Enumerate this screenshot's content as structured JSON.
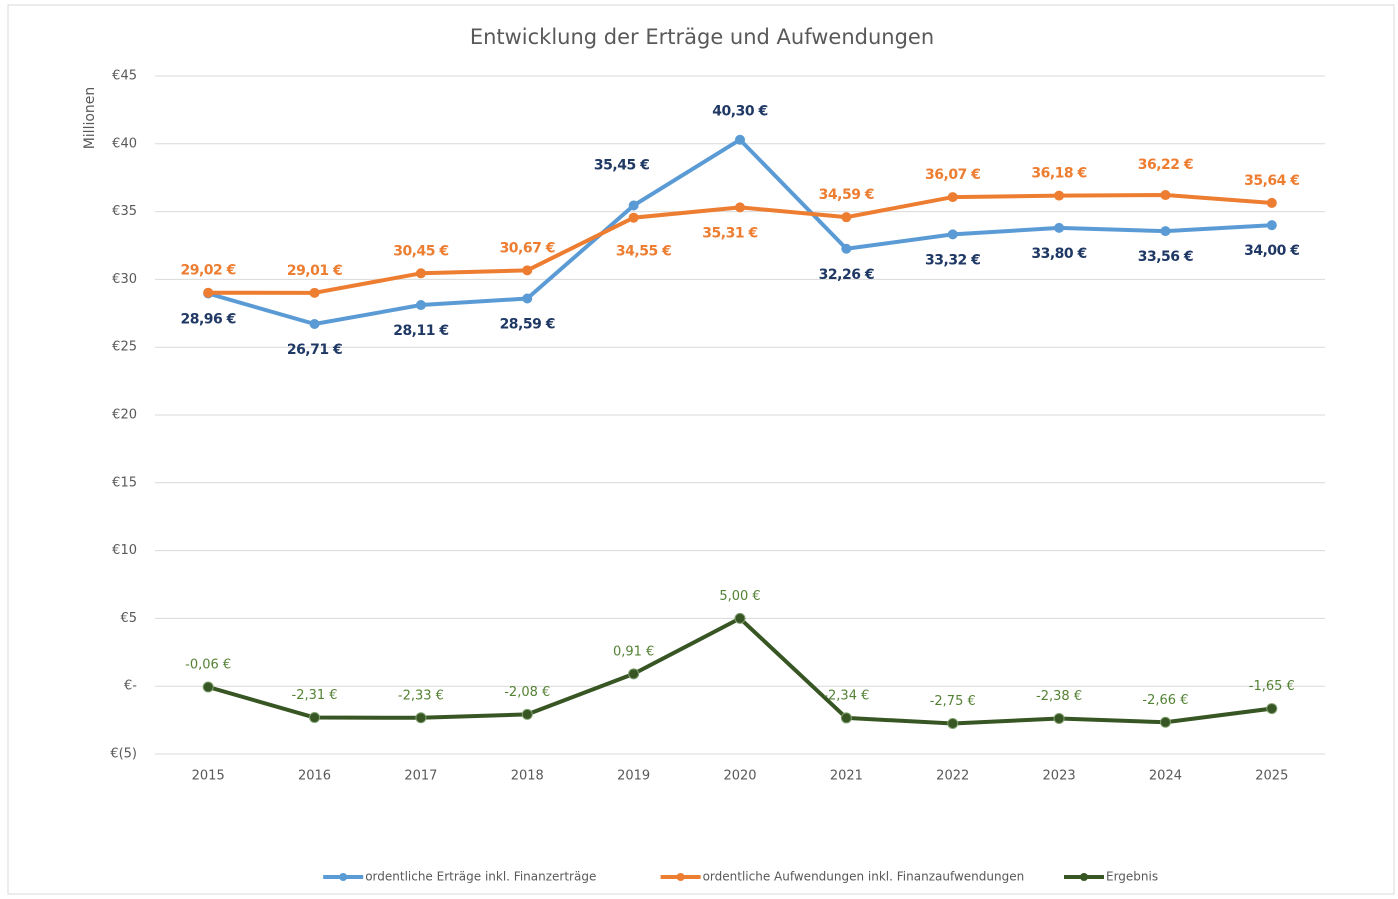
{
  "chart_data": {
    "type": "line",
    "title": "Entwicklung der Erträge und Aufwendungen",
    "y_axis_label": "Millionen",
    "categories": [
      "2015",
      "2016",
      "2017",
      "2018",
      "2019",
      "2020",
      "2021",
      "2022",
      "2023",
      "2024",
      "2025"
    ],
    "series": [
      {
        "name": "ordentliche Erträge inkl. Finanzerträge",
        "color": "#5b9bd5",
        "label_color": "#1f3864",
        "values": [
          28.96,
          26.71,
          28.11,
          28.59,
          35.45,
          40.3,
          32.26,
          33.32,
          33.8,
          33.56,
          34.0
        ],
        "value_labels": [
          "28,96 €",
          "26,71 €",
          "28,11 €",
          "28,59 €",
          "35,45 €",
          "40,30 €",
          "32,26 €",
          "33,32 €",
          "33,80 €",
          "33,56 €",
          "34,00 €"
        ]
      },
      {
        "name": "ordentliche Aufwendungen inkl. Finanzaufwendungen",
        "color": "#ed7d31",
        "label_color": "#ed7d31",
        "values": [
          29.02,
          29.01,
          30.45,
          30.67,
          34.55,
          35.31,
          34.59,
          36.07,
          36.18,
          36.22,
          35.64
        ],
        "value_labels": [
          "29,02 €",
          "29,01 €",
          "30,45 €",
          "30,67 €",
          "34,55 €",
          "35,31 €",
          "34,59 €",
          "36,07 €",
          "36,18 €",
          "36,22 €",
          "35,64 €"
        ]
      },
      {
        "name": "Ergebnis",
        "color": "#375623",
        "label_color": "#548235",
        "values": [
          -0.06,
          -2.31,
          -2.33,
          -2.08,
          0.91,
          5.0,
          -2.34,
          -2.75,
          -2.38,
          -2.66,
          -1.65
        ],
        "value_labels": [
          "-0,06 €",
          "-2,31 €",
          "-2,33 €",
          "-2,08 €",
          "0,91 €",
          "5,00 €",
          "-2,34 €",
          "-2,75 €",
          "-2,38 €",
          "-2,66 €",
          "-1,65 €"
        ]
      }
    ],
    "ylim": [
      -5,
      45
    ],
    "yticks": [
      {
        "value": -5,
        "label": "€(5)"
      },
      {
        "value": 0,
        "label": "€-"
      },
      {
        "value": 5,
        "label": "€5"
      },
      {
        "value": 10,
        "label": "€10"
      },
      {
        "value": 15,
        "label": "€15"
      },
      {
        "value": 20,
        "label": "€20"
      },
      {
        "value": 25,
        "label": "€25"
      },
      {
        "value": 30,
        "label": "€30"
      },
      {
        "value": 35,
        "label": "€35"
      },
      {
        "value": 40,
        "label": "€40"
      },
      {
        "value": 45,
        "label": "€45"
      }
    ],
    "grid": true,
    "legend": "bottom"
  }
}
